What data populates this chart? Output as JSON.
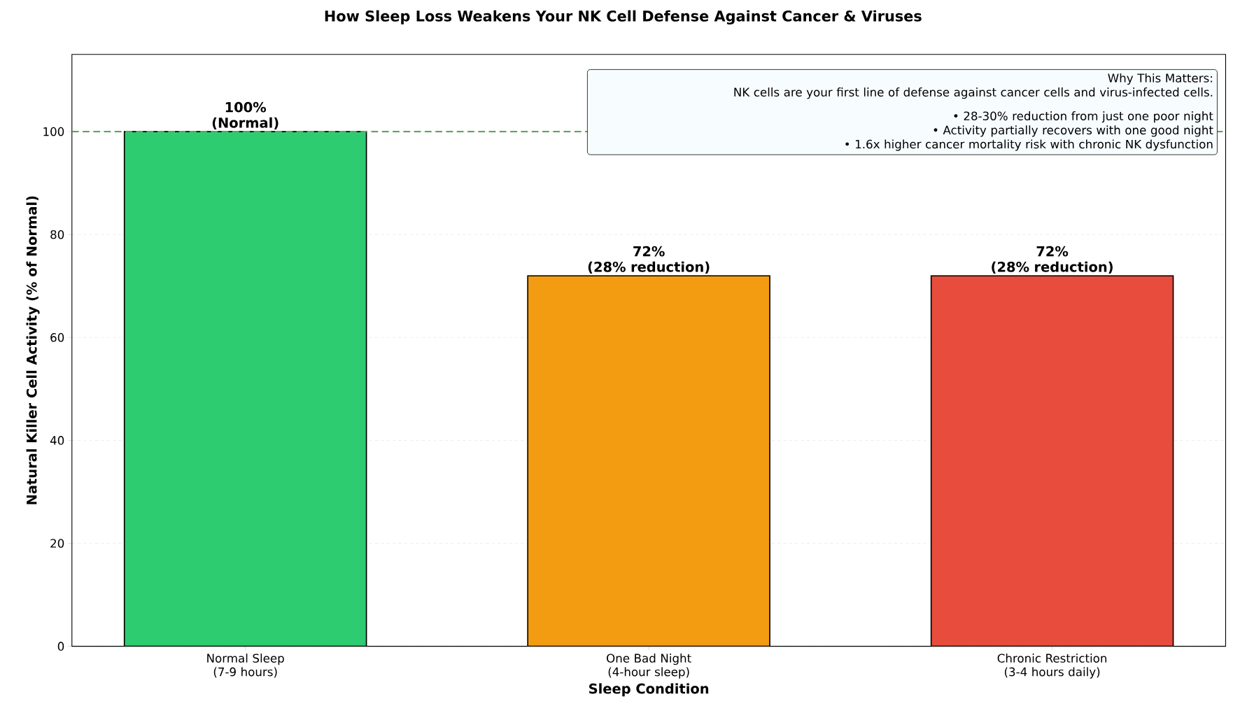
{
  "chart_data": {
    "type": "bar",
    "title": "How Sleep Loss Weakens Your NK Cell Defense Against Cancer & Viruses",
    "xlabel": "Sleep Condition",
    "ylabel": "Natural Killer Cell Activity (% of Normal)",
    "categories": [
      "Normal Sleep\n(7-9 hours)",
      "One Bad Night\n(4-hour sleep)",
      "Chronic Restriction\n(3-4 hours daily)"
    ],
    "values": [
      100,
      72,
      72
    ],
    "colors": [
      "#2ecc71",
      "#f39c12",
      "#e74c3c"
    ],
    "value_labels": [
      "100%\n(Normal)",
      "72%\n(28% reduction)",
      "72%\n(28% reduction)"
    ],
    "ylim": [
      0,
      115
    ],
    "yticks": [
      0,
      20,
      40,
      60,
      80,
      100
    ],
    "grid": "y",
    "ref_lines": [
      {
        "axis": "y",
        "value": 100,
        "color": "#5aa55a",
        "line_style": "dashed"
      }
    ],
    "annotations": [
      "Why This Matters:",
      "NK cells are your first line of defense against cancer cells and virus-infected cells.",
      "• 28-30% reduction from just one poor night",
      "• Activity partially recovers with one good night",
      "• 1.6x higher cancer mortality risk with chronic NK dysfunction"
    ]
  }
}
